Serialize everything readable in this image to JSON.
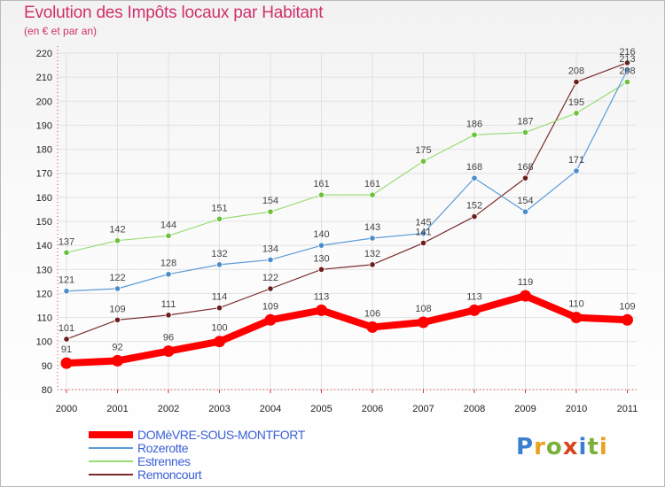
{
  "header": {
    "title": "Evolution des Impôts locaux par Habitant",
    "subtitle": "(en € et par an)"
  },
  "logo": {
    "text": "Proxiti",
    "letters": [
      "P",
      "r",
      "o",
      "x",
      "i",
      "t",
      "i"
    ]
  },
  "chart_data": {
    "type": "line",
    "title": "Evolution des Impôts locaux par Habitant",
    "subtitle": "(en € et par an)",
    "xlabel": "",
    "ylabel": "",
    "categories": [
      "2000",
      "2001",
      "2002",
      "2003",
      "2004",
      "2005",
      "2006",
      "2007",
      "2008",
      "2009",
      "2010",
      "2011"
    ],
    "ylim": [
      80,
      220
    ],
    "yticks": [
      80,
      90,
      100,
      110,
      120,
      130,
      140,
      150,
      160,
      170,
      180,
      190,
      200,
      210,
      220
    ],
    "grid": true,
    "legend_position": "bottom-left",
    "series": [
      {
        "name": "DOMèVRE-SOUS-MONTFORT",
        "color": "#ff0000",
        "marker": "#ff0000",
        "highlight": true,
        "values": [
          91,
          92,
          96,
          100,
          109,
          113,
          106,
          108,
          113,
          119,
          110,
          109
        ]
      },
      {
        "name": "Rozerotte",
        "color": "#5b9bd5",
        "marker": "#4a8ccc",
        "highlight": false,
        "values": [
          121,
          122,
          128,
          132,
          134,
          140,
          143,
          145,
          168,
          154,
          171,
          213
        ]
      },
      {
        "name": "Estrennes",
        "color": "#99dd77",
        "marker": "#6cc13a",
        "highlight": false,
        "values": [
          137,
          142,
          144,
          151,
          154,
          161,
          161,
          175,
          186,
          187,
          195,
          208
        ]
      },
      {
        "name": "Remoncourt",
        "color": "#7a2a2a",
        "marker": "#6b1e1e",
        "highlight": false,
        "values": [
          101,
          109,
          111,
          114,
          122,
          130,
          132,
          141,
          152,
          168,
          208,
          216
        ]
      }
    ]
  }
}
